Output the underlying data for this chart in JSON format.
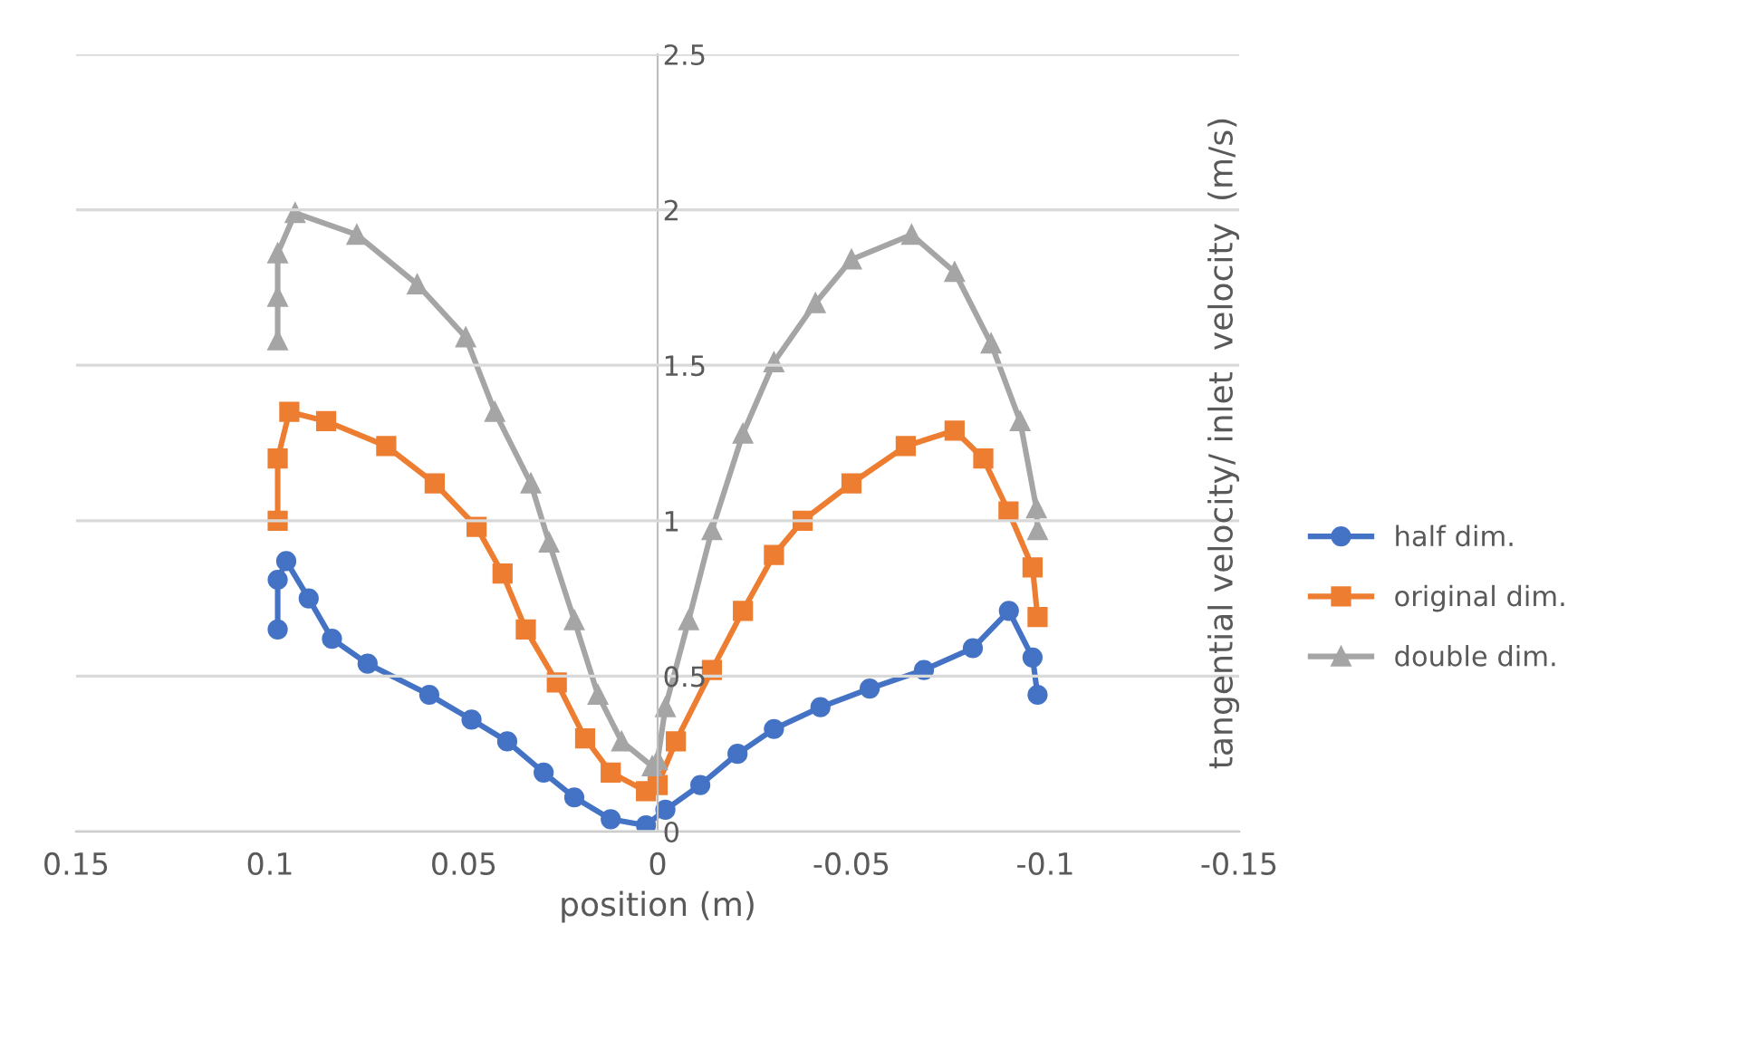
{
  "chart_data": {
    "type": "line",
    "xlabel": "position (m)",
    "ylabel": "tangential velocity/ inlet  velocity  (m/s)",
    "xlim": [
      0.15,
      -0.15
    ],
    "xticks": [
      0.15,
      0.1,
      0.05,
      0,
      -0.05,
      -0.1,
      -0.15
    ],
    "ylim": [
      0,
      2.5
    ],
    "yticks": [
      0,
      0.5,
      1,
      1.5,
      2,
      2.5
    ],
    "grid": "y",
    "legend": "right",
    "line_style": "solid",
    "series": [
      {
        "name": "half dim.",
        "color": "#4472c4",
        "marker": "circle",
        "x": [
          0.098,
          0.098,
          0.0958,
          0.09,
          0.084,
          0.0748,
          0.0589,
          0.048,
          0.0388,
          0.0294,
          0.0215,
          0.0121,
          0.003,
          -0.002,
          -0.011,
          -0.0206,
          -0.03,
          -0.042,
          -0.0547,
          -0.0687,
          -0.0813,
          -0.0906,
          -0.0967,
          -0.098
        ],
        "values": [
          0.65,
          0.81,
          0.87,
          0.75,
          0.62,
          0.54,
          0.44,
          0.36,
          0.29,
          0.19,
          0.11,
          0.04,
          0.02,
          0.07,
          0.15,
          0.25,
          0.33,
          0.4,
          0.46,
          0.52,
          0.59,
          0.71,
          0.56,
          0.44
        ]
      },
      {
        "name": "original dim.",
        "color": "#ed7d31",
        "marker": "square",
        "x": [
          0.098,
          0.098,
          0.095,
          0.0855,
          0.07,
          0.0575,
          0.0467,
          0.04,
          0.034,
          0.026,
          0.0187,
          0.0121,
          0.003,
          0.0,
          -0.0047,
          -0.014,
          -0.022,
          -0.03,
          -0.0374,
          -0.05,
          -0.064,
          -0.0766,
          -0.084,
          -0.0905,
          -0.0967,
          -0.098
        ],
        "values": [
          1.0,
          1.2,
          1.35,
          1.32,
          1.24,
          1.12,
          0.98,
          0.83,
          0.65,
          0.48,
          0.3,
          0.19,
          0.13,
          0.15,
          0.29,
          0.52,
          0.71,
          0.89,
          1.0,
          1.12,
          1.24,
          1.29,
          1.2,
          1.03,
          0.85,
          0.69
        ]
      },
      {
        "name": "double dim.",
        "color": "#a5a5a5",
        "marker": "triangle",
        "x": [
          0.098,
          0.098,
          0.098,
          0.0935,
          0.0776,
          0.062,
          0.0495,
          0.042,
          0.0327,
          0.028,
          0.0215,
          0.0154,
          0.0093,
          0.0014,
          0.0,
          -0.002,
          -0.008,
          -0.014,
          -0.022,
          -0.03,
          -0.0407,
          -0.05,
          -0.0655,
          -0.0766,
          -0.086,
          -0.0935,
          -0.0977,
          -0.098
        ],
        "values": [
          1.58,
          1.72,
          1.86,
          1.99,
          1.92,
          1.76,
          1.59,
          1.35,
          1.12,
          0.93,
          0.68,
          0.44,
          0.29,
          0.21,
          0.23,
          0.4,
          0.68,
          0.97,
          1.28,
          1.51,
          1.7,
          1.84,
          1.92,
          1.8,
          1.57,
          1.32,
          1.04,
          0.97
        ]
      }
    ]
  }
}
